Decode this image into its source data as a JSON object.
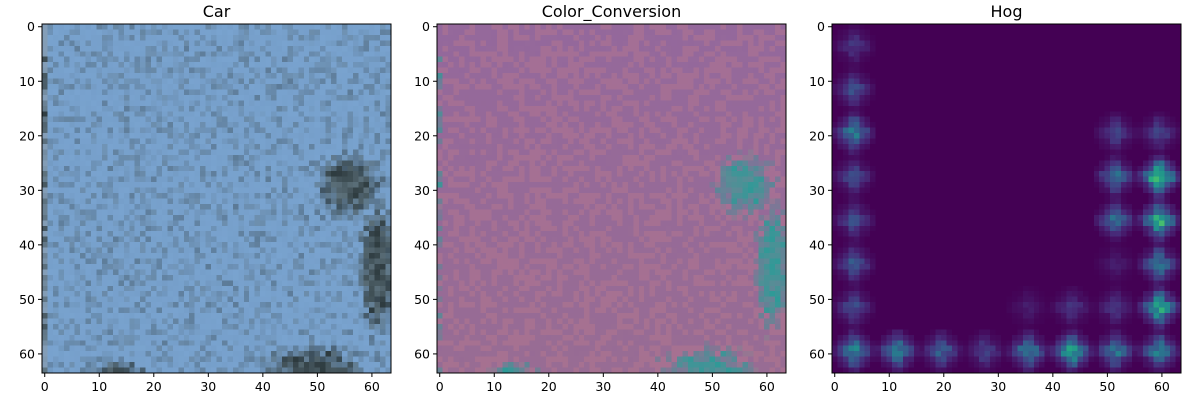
{
  "chart_data": [
    {
      "type": "heatmap",
      "title": "Car",
      "render": "rgb_photo",
      "grid": false,
      "image_size": [
        64,
        64
      ],
      "xlim": [
        -0.5,
        63.5
      ],
      "ylim": [
        63.5,
        -0.5
      ],
      "xticks": [
        0,
        10,
        20,
        30,
        40,
        50,
        60
      ],
      "yticks": [
        0,
        10,
        20,
        30,
        40,
        50,
        60
      ],
      "colors": {
        "sky": "#79a3cf",
        "foliage": "#2d3a3e",
        "foliage_light": "#5b6f79",
        "edge_grey": "#8f9aa2"
      }
    },
    {
      "type": "heatmap",
      "title": "Color_Conversion",
      "render": "converted_photo",
      "grid": false,
      "image_size": [
        64,
        64
      ],
      "xlim": [
        -0.5,
        63.5
      ],
      "ylim": [
        63.5,
        -0.5
      ],
      "xticks": [
        0,
        10,
        20,
        30,
        40,
        50,
        60
      ],
      "yticks": [
        0,
        10,
        20,
        30,
        40,
        50,
        60
      ],
      "colors": {
        "background": "#94689c",
        "background_edge": "#9a6e8f",
        "feature": "#2e9a97",
        "feature_mid": "#5a8c96",
        "transition": "#c07a8c"
      }
    },
    {
      "type": "heatmap",
      "title": "Hog",
      "render": "hog_viridis",
      "grid": false,
      "image_size": [
        64,
        64
      ],
      "xlim": [
        -0.5,
        63.5
      ],
      "ylim": [
        63.5,
        -0.5
      ],
      "xticks": [
        0,
        10,
        20,
        30,
        40,
        50,
        60
      ],
      "yticks": [
        0,
        10,
        20,
        30,
        40,
        50,
        60
      ],
      "colormap": "viridis",
      "cell_size": 8,
      "hog_cells": [
        {
          "col": 0,
          "row": 0,
          "v": 0.2
        },
        {
          "col": 0,
          "row": 1,
          "v": 0.3
        },
        {
          "col": 0,
          "row": 2,
          "v": 0.55
        },
        {
          "col": 0,
          "row": 3,
          "v": 0.3
        },
        {
          "col": 0,
          "row": 4,
          "v": 0.3
        },
        {
          "col": 0,
          "row": 5,
          "v": 0.35
        },
        {
          "col": 0,
          "row": 6,
          "v": 0.3
        },
        {
          "col": 0,
          "row": 7,
          "v": 0.6
        },
        {
          "col": 1,
          "row": 7,
          "v": 0.55
        },
        {
          "col": 2,
          "row": 7,
          "v": 0.4
        },
        {
          "col": 3,
          "row": 7,
          "v": 0.25
        },
        {
          "col": 4,
          "row": 7,
          "v": 0.55
        },
        {
          "col": 5,
          "row": 7,
          "v": 0.75
        },
        {
          "col": 6,
          "row": 7,
          "v": 0.5
        },
        {
          "col": 7,
          "row": 7,
          "v": 0.55
        },
        {
          "col": 4,
          "row": 6,
          "v": 0.1
        },
        {
          "col": 5,
          "row": 6,
          "v": 0.2
        },
        {
          "col": 6,
          "row": 6,
          "v": 0.2
        },
        {
          "col": 6,
          "row": 2,
          "v": 0.25
        },
        {
          "col": 6,
          "row": 3,
          "v": 0.45
        },
        {
          "col": 6,
          "row": 4,
          "v": 0.45
        },
        {
          "col": 6,
          "row": 5,
          "v": 0.1
        },
        {
          "col": 7,
          "row": 2,
          "v": 0.25
        },
        {
          "col": 7,
          "row": 3,
          "v": 0.95
        },
        {
          "col": 7,
          "row": 4,
          "v": 0.8
        },
        {
          "col": 7,
          "row": 5,
          "v": 0.5
        },
        {
          "col": 7,
          "row": 6,
          "v": 0.75
        }
      ]
    }
  ]
}
